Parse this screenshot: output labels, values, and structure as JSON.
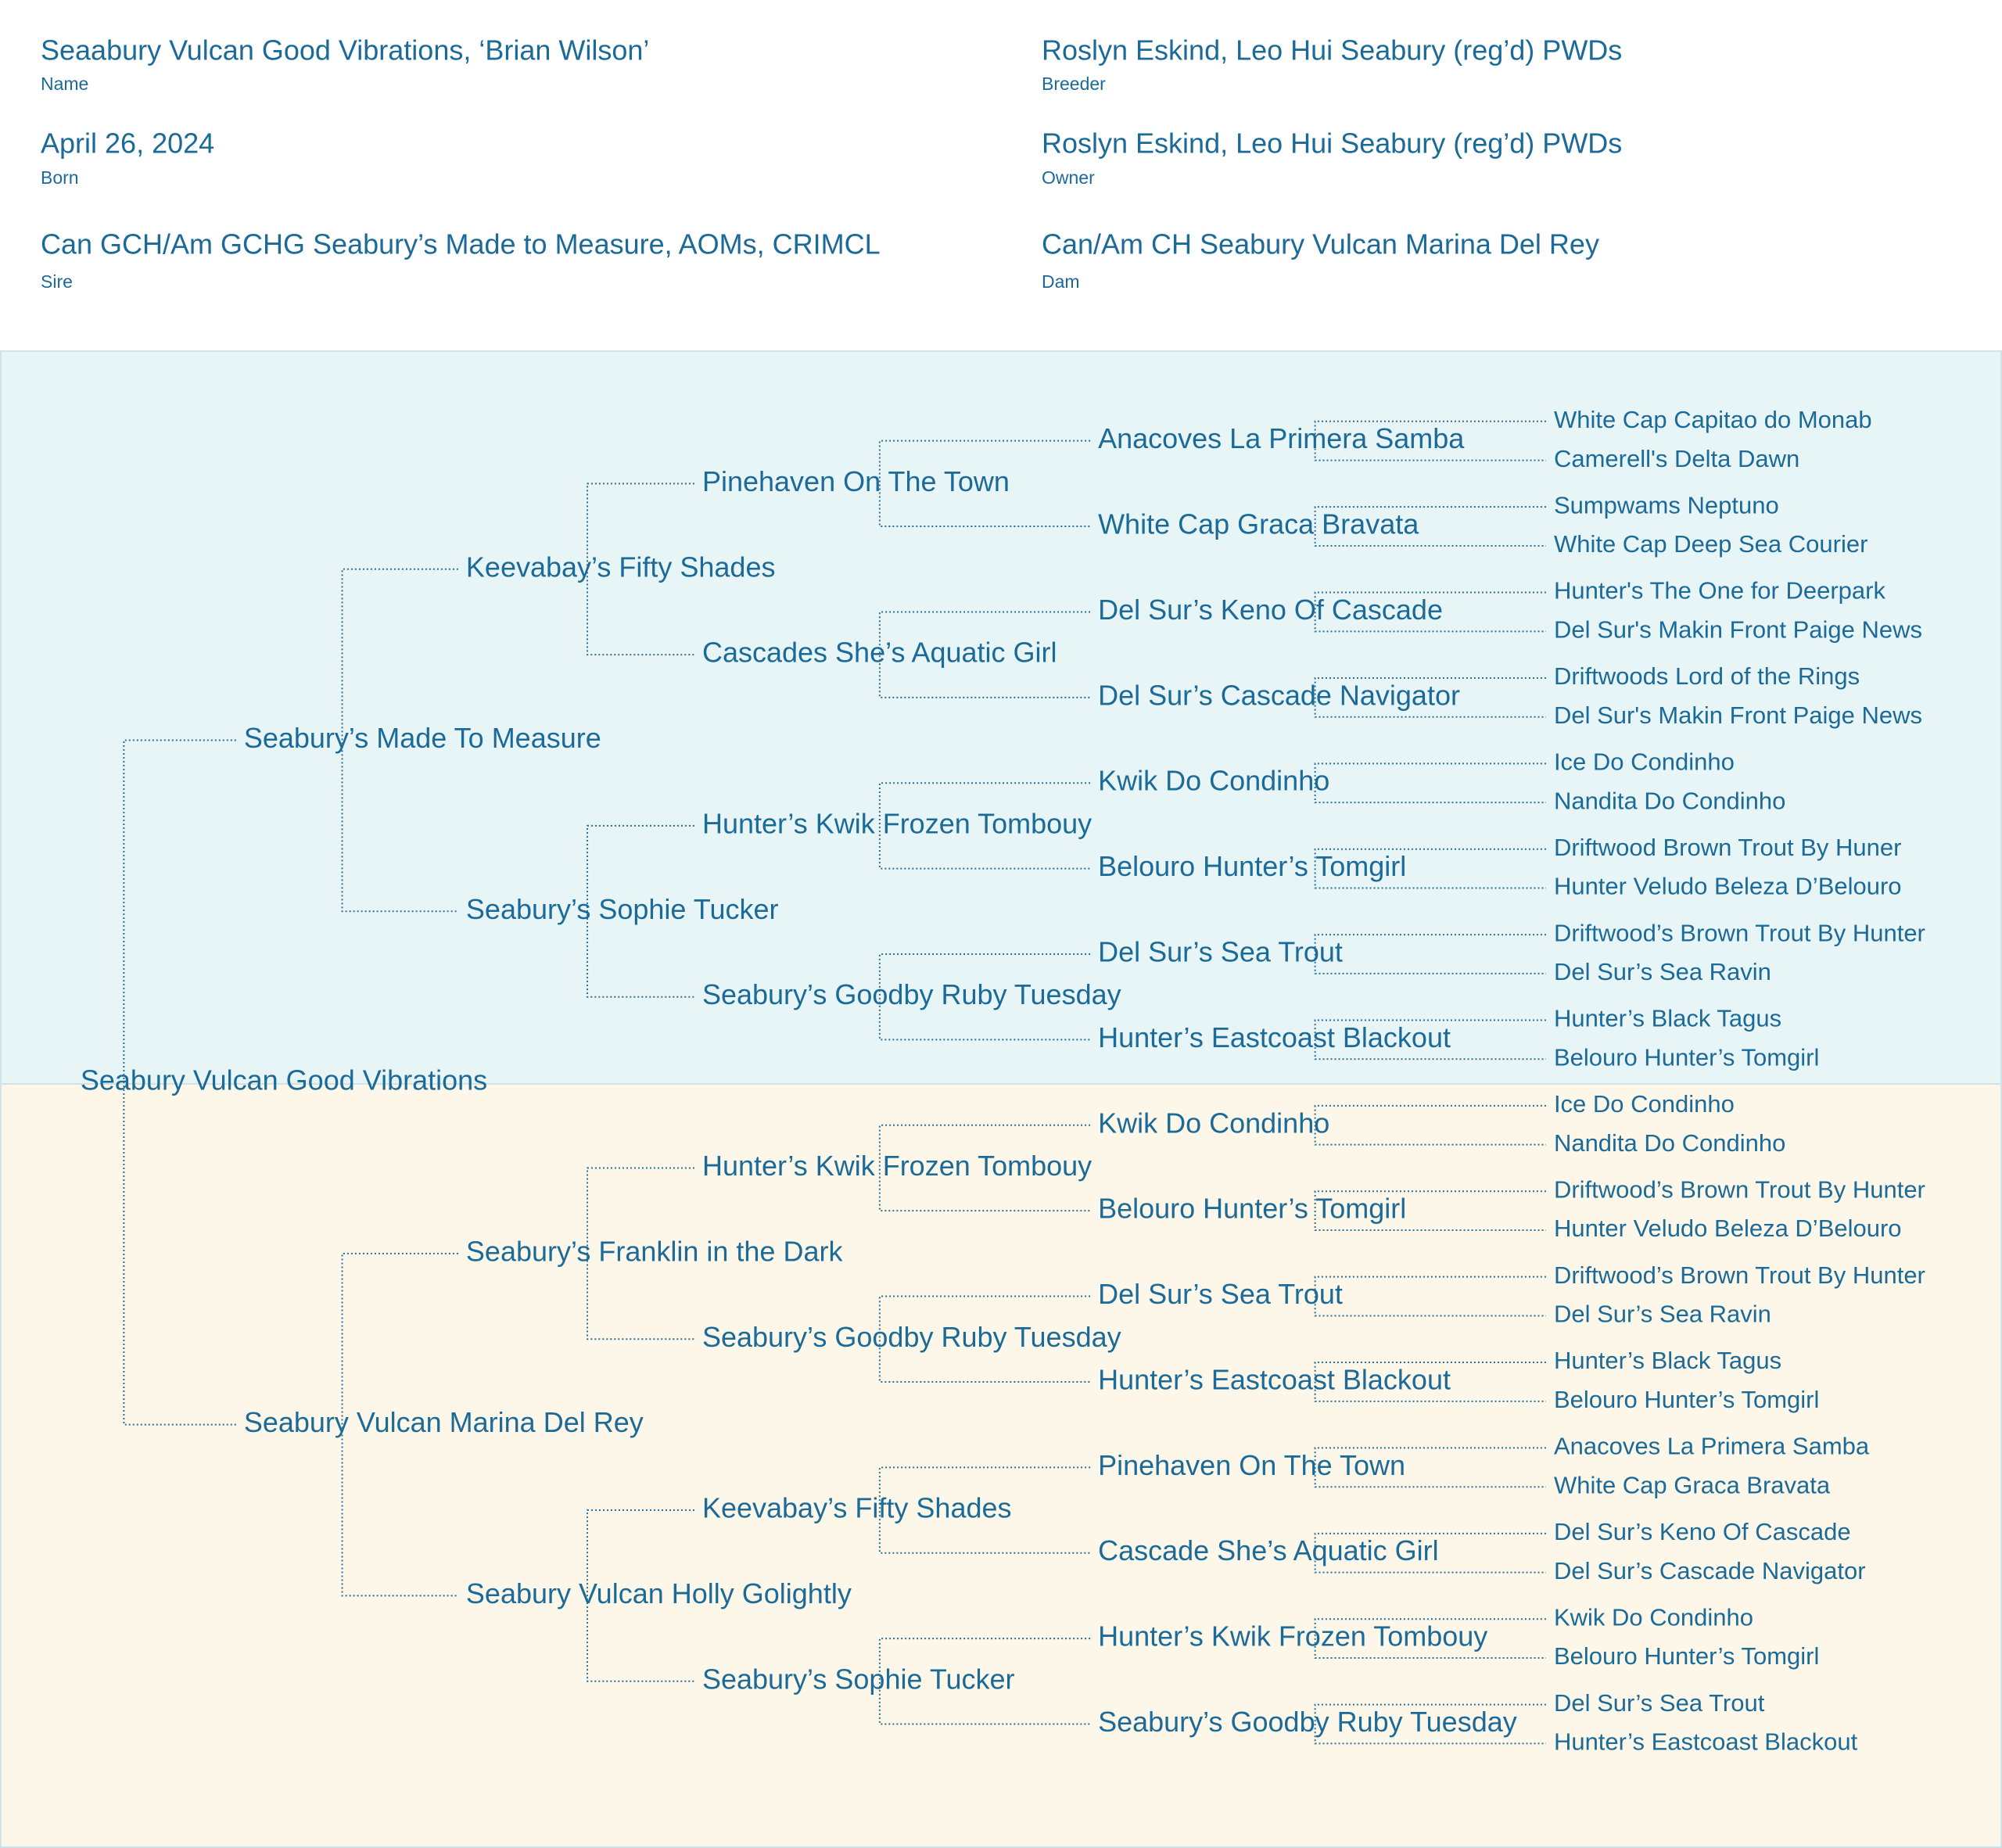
{
  "header": {
    "name": {
      "value": "Seaabury Vulcan Good Vibrations, ‘Brian Wilson’",
      "label": "Name"
    },
    "breeder": {
      "value": "Roslyn Eskind, Leo Hui Seabury (reg’d) PWDs",
      "label": "Breeder"
    },
    "born": {
      "value": "April 26, 2024",
      "label": "Born"
    },
    "owner": {
      "value": "Roslyn Eskind, Leo Hui Seabury (reg’d) PWDs",
      "label": "Owner"
    },
    "sire": {
      "value": "Can GCH/Am GCHG Seabury’s Made to Measure, AOMs, CRIMCL",
      "label": "Sire"
    },
    "dam": {
      "value": "Can/Am CH Seabury Vulcan Marina Del Rey",
      "label": "Dam"
    }
  },
  "pedigree": {
    "name": "Seabury Vulcan Good Vibrations",
    "sire": {
      "name": "Seabury’s Made To Measure",
      "sire": {
        "name": "Keevabay’s Fifty Shades",
        "sire": {
          "name": "Pinehaven On The Town",
          "sire": {
            "name": "Anacoves La Primera Samba",
            "sire": {
              "name": "White Cap Capitao do Monab"
            },
            "dam": {
              "name": "Camerell's Delta Dawn"
            }
          },
          "dam": {
            "name": "White Cap Graca Bravata",
            "sire": {
              "name": "Sumpwams Neptuno"
            },
            "dam": {
              "name": "White Cap Deep Sea Courier"
            }
          }
        },
        "dam": {
          "name": "Cascades She’s Aquatic Girl",
          "sire": {
            "name": "Del Sur’s Keno Of Cascade",
            "sire": {
              "name": "Hunter's The One for Deerpark"
            },
            "dam": {
              "name": "Del Sur's Makin Front Paige News"
            }
          },
          "dam": {
            "name": "Del Sur’s Cascade Navigator",
            "sire": {
              "name": "Driftwoods Lord of the Rings"
            },
            "dam": {
              "name": "Del Sur's Makin Front Paige News"
            }
          }
        }
      },
      "dam": {
        "name": "Seabury’s Sophie Tucker",
        "sire": {
          "name": "Hunter’s Kwik Frozen Tombouy",
          "sire": {
            "name": "Kwik Do Condinho",
            "sire": {
              "name": "Ice Do Condinho"
            },
            "dam": {
              "name": "Nandita Do Condinho"
            }
          },
          "dam": {
            "name": "Belouro Hunter’s Tomgirl",
            "sire": {
              "name": "Driftwood Brown Trout By Huner"
            },
            "dam": {
              "name": "Hunter Veludo Beleza D’Belouro"
            }
          }
        },
        "dam": {
          "name": "Seabury’s Goodby Ruby Tuesday",
          "sire": {
            "name": "Del Sur’s Sea Trout",
            "sire": {
              "name": "Driftwood’s Brown Trout By Hunter"
            },
            "dam": {
              "name": "Del Sur’s Sea Ravin"
            }
          },
          "dam": {
            "name": "Hunter’s Eastcoast Blackout",
            "sire": {
              "name": "Hunter’s Black Tagus"
            },
            "dam": {
              "name": "Belouro Hunter’s Tomgirl"
            }
          }
        }
      }
    },
    "dam": {
      "name": "Seabury Vulcan Marina Del Rey",
      "sire": {
        "name": "Seabury’s Franklin in the Dark",
        "sire": {
          "name": "Hunter’s Kwik Frozen Tombouy",
          "sire": {
            "name": "Kwik Do Condinho",
            "sire": {
              "name": "Ice Do Condinho"
            },
            "dam": {
              "name": "Nandita Do Condinho"
            }
          },
          "dam": {
            "name": "Belouro Hunter’s Tomgirl",
            "sire": {
              "name": "Driftwood’s Brown Trout By Hunter"
            },
            "dam": {
              "name": "Hunter Veludo Beleza D’Belouro"
            }
          }
        },
        "dam": {
          "name": "Seabury’s Goodby Ruby Tuesday",
          "sire": {
            "name": "Del Sur’s Sea Trout",
            "sire": {
              "name": "Driftwood’s Brown Trout By Hunter"
            },
            "dam": {
              "name": "Del Sur’s Sea Ravin"
            }
          },
          "dam": {
            "name": "Hunter’s Eastcoast Blackout",
            "sire": {
              "name": "Hunter’s Black Tagus"
            },
            "dam": {
              "name": "Belouro Hunter’s Tomgirl"
            }
          }
        }
      },
      "dam": {
        "name": "Seabury Vulcan Holly Golightly",
        "sire": {
          "name": "Keevabay’s Fifty Shades",
          "sire": {
            "name": "Pinehaven On The Town",
            "sire": {
              "name": "Anacoves La Primera Samba"
            },
            "dam": {
              "name": "White Cap Graca Bravata"
            }
          },
          "dam": {
            "name": "Cascade She’s Aquatic Girl",
            "sire": {
              "name": "Del Sur’s Keno Of Cascade"
            },
            "dam": {
              "name": "Del Sur’s Cascade Navigator"
            }
          }
        },
        "dam": {
          "name": "Seabury’s Sophie Tucker",
          "sire": {
            "name": "Hunter’s Kwik Frozen Tombouy",
            "sire": {
              "name": "Kwik Do Condinho"
            },
            "dam": {
              "name": "Belouro Hunter’s Tomgirl"
            }
          },
          "dam": {
            "name": "Seabury’s Goodby Ruby Tuesday",
            "sire": {
              "name": "Del Sur’s Sea Trout"
            },
            "dam": {
              "name": "Hunter’s Eastcoast Blackout"
            }
          }
        }
      }
    }
  }
}
